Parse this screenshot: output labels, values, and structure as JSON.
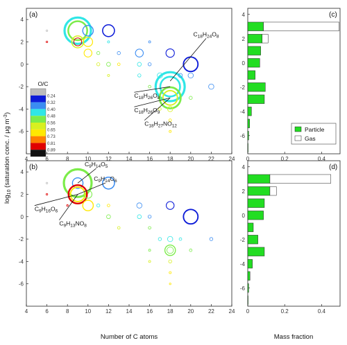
{
  "chart_data": [
    {
      "panel": "(a)",
      "type": "scatter",
      "xlim": [
        4,
        24
      ],
      "ylim": [
        -8,
        5
      ],
      "xticks": [
        4,
        6,
        8,
        10,
        12,
        14,
        16,
        18,
        20,
        22,
        24
      ],
      "yticks": [
        -6,
        -4,
        -2,
        0,
        2,
        4
      ],
      "colorbar": {
        "title": "O/C",
        "ticks": [
          "0.24",
          "0.32",
          "0.40",
          "0.48",
          "0.56",
          "0.65",
          "0.73",
          "0.81",
          "0.89"
        ],
        "colors": [
          "#bcbcbc",
          "#0c1bd8",
          "#3a8cf2",
          "#30e6e6",
          "#7cec4a",
          "#d8f020",
          "#ffe800",
          "#ff8000",
          "#e00000",
          "#111111"
        ]
      },
      "points": [
        {
          "x": 9,
          "y": 3,
          "size": 1.0,
          "color": "#30e6e6"
        },
        {
          "x": 9,
          "y": 3,
          "size": 0.72,
          "color": "#7cec4a"
        },
        {
          "x": 9,
          "y": 2,
          "size": 0.45,
          "color": "#d8f020"
        },
        {
          "x": 9,
          "y": 2,
          "size": 0.3,
          "color": "#e00000"
        },
        {
          "x": 10,
          "y": 3,
          "size": 0.4,
          "color": "#3a8cf2"
        },
        {
          "x": 10,
          "y": 2,
          "size": 0.35,
          "color": "#ffe800"
        },
        {
          "x": 10,
          "y": 1,
          "size": 0.3,
          "color": "#ffe800"
        },
        {
          "x": 12,
          "y": 3,
          "size": 0.45,
          "color": "#0c1bd8"
        },
        {
          "x": 11,
          "y": 1,
          "size": 0.12,
          "color": "#7cec4a"
        },
        {
          "x": 12,
          "y": 2,
          "size": 0.08,
          "color": "#30e6e6"
        },
        {
          "x": 13,
          "y": 1,
          "size": 0.12,
          "color": "#3a8cf2"
        },
        {
          "x": 11,
          "y": 0,
          "size": 0.12,
          "color": "#d8f020"
        },
        {
          "x": 12,
          "y": 0,
          "size": 0.15,
          "color": "#7cec4a"
        },
        {
          "x": 13,
          "y": 0,
          "size": 0.1,
          "color": "#ffe800"
        },
        {
          "x": 12,
          "y": -1,
          "size": 0.08,
          "color": "#d8f020"
        },
        {
          "x": 15,
          "y": 1,
          "size": 0.3,
          "color": "#3a8cf2"
        },
        {
          "x": 15,
          "y": 0,
          "size": 0.15,
          "color": "#30e6e6"
        },
        {
          "x": 16,
          "y": 0,
          "size": 0.12,
          "color": "#3a8cf2"
        },
        {
          "x": 15,
          "y": -1,
          "size": 0.12,
          "color": "#30e6e6"
        },
        {
          "x": 16,
          "y": -2,
          "size": 0.1,
          "color": "#7cec4a"
        },
        {
          "x": 17,
          "y": -1,
          "size": 0.2,
          "color": "#30e6e6"
        },
        {
          "x": 18,
          "y": 1,
          "size": 0.32,
          "color": "#0c1bd8"
        },
        {
          "x": 18,
          "y": -2,
          "size": 1.1,
          "color": "#30e6e6"
        },
        {
          "x": 18,
          "y": -2,
          "size": 0.75,
          "color": "#30e6e6"
        },
        {
          "x": 18,
          "y": -3,
          "size": 0.8,
          "color": "#7cec4a"
        },
        {
          "x": 18,
          "y": -3,
          "size": 0.55,
          "color": "#d8f020"
        },
        {
          "x": 18,
          "y": -4,
          "size": 0.2,
          "color": "#d8f020"
        },
        {
          "x": 18,
          "y": -5,
          "size": 0.1,
          "color": "#ffe800"
        },
        {
          "x": 18,
          "y": -6,
          "size": 0.08,
          "color": "#ffe800"
        },
        {
          "x": 17,
          "y": -3,
          "size": 0.1,
          "color": "#7cec4a"
        },
        {
          "x": 17,
          "y": -4,
          "size": 0.1,
          "color": "#d8f020"
        },
        {
          "x": 19,
          "y": -1,
          "size": 0.15,
          "color": "#3a8cf2"
        },
        {
          "x": 20,
          "y": 0,
          "size": 0.55,
          "color": "#0c1bd8"
        },
        {
          "x": 20,
          "y": -1,
          "size": 0.2,
          "color": "#3a8cf2"
        },
        {
          "x": 22,
          "y": -2,
          "size": 0.2,
          "color": "#3a8cf2"
        },
        {
          "x": 20,
          "y": -3,
          "size": 0.12,
          "color": "#7cec4a"
        },
        {
          "x": 16,
          "y": 2,
          "size": 0.08,
          "color": "#3a8cf2"
        },
        {
          "x": 6,
          "y": 2,
          "size": 0.05,
          "color": "#e00000"
        },
        {
          "x": 6,
          "y": 3,
          "size": 0.04,
          "color": "#bcbcbc"
        }
      ],
      "annotations": [
        {
          "text": "C18H24O8",
          "x": 21.5,
          "y": 2.5,
          "to": [
            18,
            -1.5
          ]
        },
        {
          "text": "C18H26O8",
          "x": 14.5,
          "y": -3.0,
          "to": [
            18,
            -2
          ]
        },
        {
          "text": "C18H26O9",
          "x": 14.5,
          "y": -4.3,
          "to": [
            18,
            -3
          ]
        },
        {
          "text": "C18H27NO12",
          "x": 15.5,
          "y": -5.5,
          "to": [
            18,
            -3
          ]
        }
      ]
    },
    {
      "panel": "(b)",
      "type": "scatter",
      "xlim": [
        4,
        24
      ],
      "ylim": [
        -8,
        5
      ],
      "xticks": [
        4,
        6,
        8,
        10,
        12,
        14,
        16,
        18,
        20,
        22,
        24
      ],
      "yticks": [
        -6,
        -4,
        -2,
        0,
        2,
        4
      ],
      "xlabel": "Number of C atoms",
      "points": [
        {
          "x": 9,
          "y": 3,
          "size": 1.05,
          "color": "#7cec4a"
        },
        {
          "x": 9,
          "y": 3,
          "size": 0.4,
          "color": "#3a8cf2"
        },
        {
          "x": 9,
          "y": 2,
          "size": 0.7,
          "color": "#e00000"
        },
        {
          "x": 9,
          "y": 2,
          "size": 0.55,
          "color": "#ffe800"
        },
        {
          "x": 10,
          "y": 1,
          "size": 0.4,
          "color": "#ffe800"
        },
        {
          "x": 10,
          "y": 2,
          "size": 0.3,
          "color": "#7cec4a"
        },
        {
          "x": 12,
          "y": 3,
          "size": 0.45,
          "color": "#3a8cf2"
        },
        {
          "x": 11,
          "y": 1,
          "size": 0.12,
          "color": "#30e6e6"
        },
        {
          "x": 12,
          "y": 0,
          "size": 0.15,
          "color": "#7cec4a"
        },
        {
          "x": 12,
          "y": 1,
          "size": 0.1,
          "color": "#ffe800"
        },
        {
          "x": 13,
          "y": -1,
          "size": 0.1,
          "color": "#d8f020"
        },
        {
          "x": 15,
          "y": 1,
          "size": 0.2,
          "color": "#3a8cf2"
        },
        {
          "x": 15,
          "y": 0,
          "size": 0.15,
          "color": "#30e6e6"
        },
        {
          "x": 16,
          "y": 0,
          "size": 0.12,
          "color": "#3a8cf2"
        },
        {
          "x": 16,
          "y": -1,
          "size": 0.1,
          "color": "#7cec4a"
        },
        {
          "x": 17,
          "y": -2,
          "size": 0.12,
          "color": "#30e6e6"
        },
        {
          "x": 18,
          "y": 1,
          "size": 0.3,
          "color": "#0c1bd8"
        },
        {
          "x": 18,
          "y": -2,
          "size": 0.2,
          "color": "#30e6e6"
        },
        {
          "x": 18,
          "y": -3,
          "size": 0.4,
          "color": "#7cec4a"
        },
        {
          "x": 18,
          "y": -3,
          "size": 0.25,
          "color": "#7cec4a"
        },
        {
          "x": 18,
          "y": -4,
          "size": 0.12,
          "color": "#d8f020"
        },
        {
          "x": 18,
          "y": -5,
          "size": 0.08,
          "color": "#ffe800"
        },
        {
          "x": 18,
          "y": -6,
          "size": 0.06,
          "color": "#ffe800"
        },
        {
          "x": 16,
          "y": -3,
          "size": 0.08,
          "color": "#7cec4a"
        },
        {
          "x": 16,
          "y": -4,
          "size": 0.08,
          "color": "#d8f020"
        },
        {
          "x": 20,
          "y": 0,
          "size": 0.55,
          "color": "#0c1bd8"
        },
        {
          "x": 19,
          "y": -2,
          "size": 0.1,
          "color": "#30e6e6"
        },
        {
          "x": 20,
          "y": -3,
          "size": 0.1,
          "color": "#7cec4a"
        },
        {
          "x": 22,
          "y": -2,
          "size": 0.12,
          "color": "#3a8cf2"
        },
        {
          "x": 6,
          "y": 2,
          "size": 0.05,
          "color": "#e00000"
        },
        {
          "x": 6,
          "y": 3,
          "size": 0.04,
          "color": "#bcbcbc"
        },
        {
          "x": 8,
          "y": 1,
          "size": 0.06,
          "color": "#e00000"
        }
      ],
      "annotations": [
        {
          "text": "C9H14O5",
          "x": 10.8,
          "y": 4.5,
          "to": [
            9,
            3
          ]
        },
        {
          "text": "C9H14O6",
          "x": 11.7,
          "y": 3.2,
          "to": [
            9,
            2
          ]
        },
        {
          "text": "C9H16O6",
          "x": 4.8,
          "y": 0.5,
          "to": [
            9,
            2
          ]
        },
        {
          "text": "C9H13NO8",
          "x": 7.2,
          "y": -0.8,
          "to": [
            9,
            2
          ]
        }
      ]
    },
    {
      "panel": "(c)",
      "type": "bar",
      "orientation": "horizontal",
      "xlim": [
        0,
        0.5
      ],
      "ylim": [
        -7.5,
        4.5
      ],
      "xticks": [
        0,
        0.2,
        0.4
      ],
      "yticks": [
        -6,
        -4,
        -2,
        0,
        2,
        4
      ],
      "categories": [
        -7,
        -6,
        -5,
        -4,
        -3,
        -2,
        -1,
        0,
        1,
        2,
        3,
        4
      ],
      "legend": {
        "placement": "bottom-right",
        "entries": [
          "Particle",
          "Gas"
        ]
      },
      "series": [
        {
          "name": "Particle",
          "values": [
            0.002,
            0.005,
            0.01,
            0.02,
            0.09,
            0.095,
            0.04,
            0.065,
            0.07,
            0.078,
            0.085,
            0.0
          ]
        },
        {
          "name": "Gas",
          "values": [
            0.0,
            0.0,
            0.0,
            0.0,
            0.0,
            0.0,
            0.0,
            0.0,
            0.0,
            0.032,
            0.41,
            0.0
          ]
        }
      ]
    },
    {
      "panel": "(d)",
      "type": "bar",
      "orientation": "horizontal",
      "xlim": [
        0,
        0.5
      ],
      "ylim": [
        -7.5,
        4.5
      ],
      "xticks": [
        0,
        0.2,
        0.4
      ],
      "yticks": [
        -6,
        -4,
        -2,
        0,
        2,
        4
      ],
      "categories": [
        -7,
        -6,
        -5,
        -4,
        -3,
        -2,
        -1,
        0,
        1,
        2,
        3,
        4
      ],
      "xlabel": "Mass fraction",
      "series": [
        {
          "name": "Particle",
          "values": [
            0.002,
            0.005,
            0.012,
            0.025,
            0.09,
            0.055,
            0.03,
            0.085,
            0.09,
            0.12,
            0.12,
            0.0
          ]
        },
        {
          "name": "Gas",
          "values": [
            0.0,
            0.0,
            0.0,
            0.0,
            0.0,
            0.0,
            0.0,
            0.0,
            0.0,
            0.035,
            0.33,
            0.0
          ]
        }
      ]
    }
  ],
  "shared": {
    "ylabel": "log10 (saturation conc. / µg m-3)"
  },
  "legend_fill_colors": {
    "Particle": "#22dd22",
    "Gas": "#ffffff"
  }
}
